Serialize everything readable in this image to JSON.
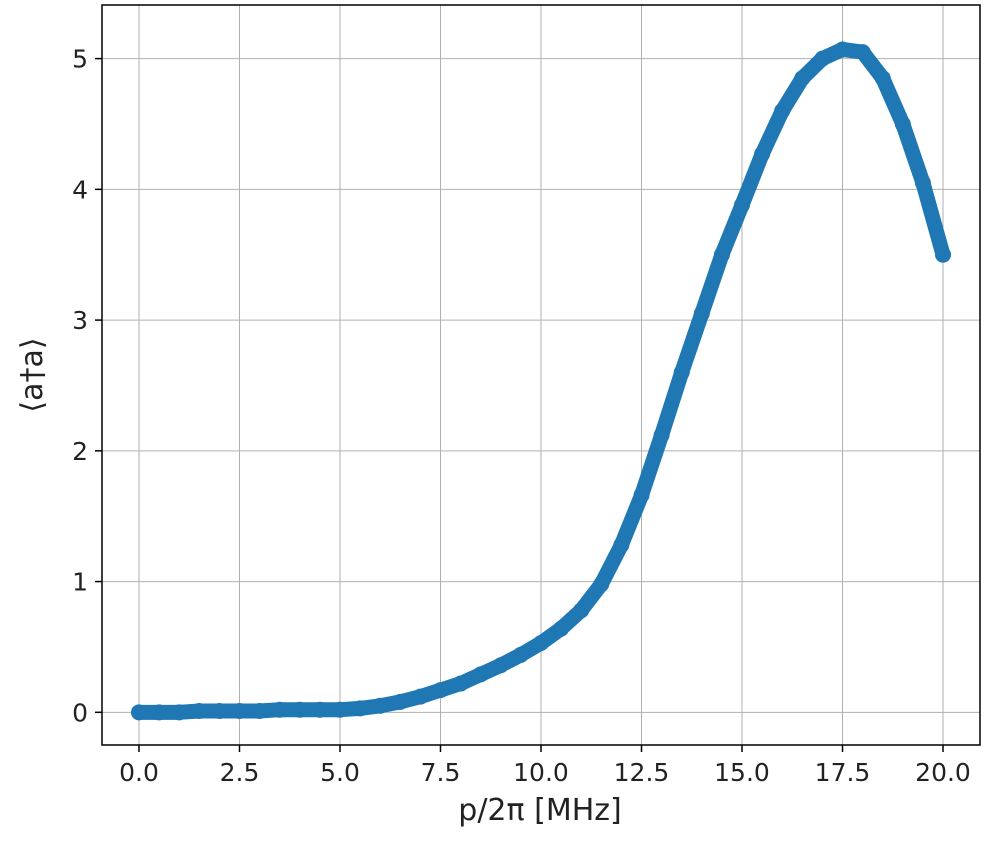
{
  "chart_data": {
    "type": "scatter",
    "x_label": "p/2π [MHz]",
    "y_label": "⟨a†a⟩",
    "x": [
      0,
      0.5,
      1,
      1.5,
      2,
      2.5,
      3,
      3.5,
      4,
      4.5,
      5,
      5.5,
      6,
      6.5,
      7,
      7.5,
      8,
      8.5,
      9,
      9.5,
      10,
      10.5,
      11,
      11.5,
      12,
      12.5,
      13,
      13.5,
      14,
      14.5,
      15,
      15.5,
      16,
      16.5,
      17,
      17.5,
      18,
      18.5,
      19,
      19.5,
      20
    ],
    "series": [
      {
        "color": "#1f77b4",
        "values": [
          0,
          0,
          0,
          0.01,
          0.01,
          0.01,
          0.01,
          0.02,
          0.02,
          0.02,
          0.02,
          0.03,
          0.05,
          0.08,
          0.12,
          0.17,
          0.22,
          0.29,
          0.36,
          0.44,
          0.53,
          0.64,
          0.78,
          0.98,
          1.28,
          1.66,
          2.12,
          2.6,
          3.05,
          3.5,
          3.88,
          4.27,
          4.6,
          4.85,
          5.0,
          5.07,
          5.05,
          4.85,
          4.5,
          4.05,
          3.5
        ]
      }
    ],
    "xlim": [
      -0.92,
      20.92
    ],
    "ylim": [
      -0.25,
      5.41
    ],
    "xticks": [
      {
        "value": 0,
        "label": "0.0"
      },
      2.5,
      {
        "value": 5,
        "label": "5.0"
      },
      7.5,
      {
        "value": 10,
        "label": "10.0"
      },
      12.5,
      {
        "value": 15,
        "label": "15.0"
      },
      17.5,
      {
        "value": 20,
        "label": "20.0"
      }
    ],
    "yticks": [
      0,
      1,
      2,
      3,
      4,
      5
    ],
    "grid": true
  }
}
